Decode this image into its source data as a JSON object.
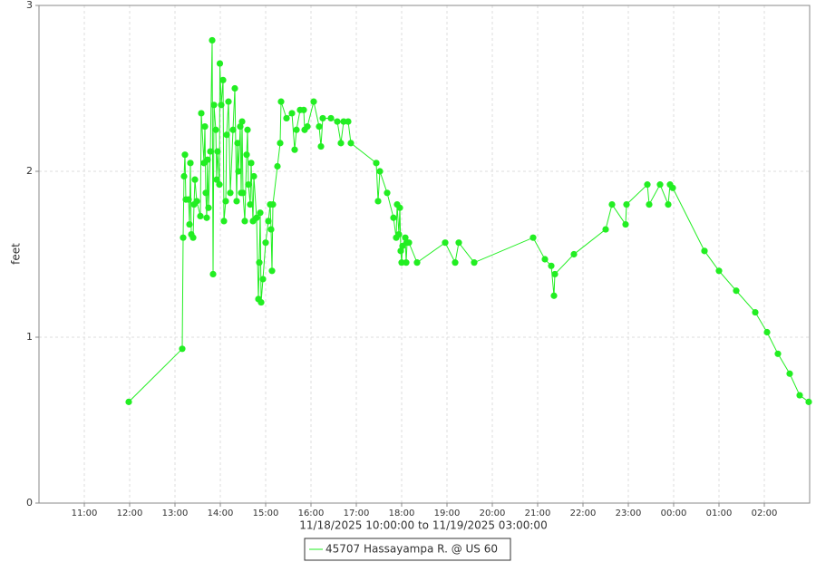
{
  "chart_data": {
    "type": "line",
    "x_label": "11/18/2025 10:00:00 to 11/19/2025 03:00:00",
    "y_label": "feet",
    "x": [
      1.98,
      3.16,
      3.18,
      3.2,
      3.22,
      3.24,
      3.3,
      3.32,
      3.34,
      3.36,
      3.4,
      3.42,
      3.44,
      3.48,
      3.56,
      3.58,
      3.64,
      3.66,
      3.68,
      3.7,
      3.72,
      3.74,
      3.78,
      3.82,
      3.84,
      3.86,
      3.9,
      3.92,
      3.94,
      3.98,
      3.99,
      4.02,
      4.06,
      4.08,
      4.12,
      4.14,
      4.18,
      4.22,
      4.28,
      4.32,
      4.36,
      4.38,
      4.4,
      4.44,
      4.46,
      4.48,
      4.5,
      4.54,
      4.58,
      4.6,
      4.62,
      4.66,
      4.68,
      4.72,
      4.74,
      4.8,
      4.84,
      4.86,
      4.88,
      4.9,
      4.94,
      5.0,
      5.06,
      5.1,
      5.12,
      5.14,
      5.16,
      5.26,
      5.32,
      5.34,
      5.46,
      5.58,
      5.64,
      5.68,
      5.76,
      5.84,
      5.86,
      5.92,
      6.06,
      6.18,
      6.22,
      6.26,
      6.44,
      6.58,
      6.66,
      6.72,
      6.82,
      6.88,
      7.44,
      7.48,
      7.52,
      7.68,
      7.82,
      7.88,
      7.9,
      7.94,
      7.96,
      7.98,
      8.0,
      8.02,
      8.08,
      8.1,
      8.12,
      8.16,
      8.34,
      8.96,
      9.18,
      9.26,
      9.6,
      10.9,
      11.16,
      11.3,
      11.36,
      11.38,
      11.8,
      12.5,
      12.64,
      12.94,
      12.96,
      13.42,
      13.46,
      13.7,
      13.88,
      13.92,
      13.98,
      14.68,
      15.0,
      15.38,
      15.8,
      16.06,
      16.3,
      16.56,
      16.78,
      16.98
    ],
    "series": [
      {
        "name": "45707 Hassayampa R. @ US 60",
        "color": "#22ee22",
        "values": [
          0.61,
          0.93,
          1.6,
          1.97,
          2.1,
          1.83,
          1.83,
          1.68,
          2.05,
          1.62,
          1.6,
          1.8,
          1.95,
          1.82,
          1.73,
          2.35,
          2.05,
          2.27,
          1.87,
          1.72,
          2.07,
          1.78,
          2.12,
          2.79,
          1.38,
          2.4,
          2.25,
          1.95,
          2.12,
          1.92,
          2.65,
          2.4,
          2.55,
          1.7,
          1.82,
          2.22,
          2.42,
          1.87,
          2.25,
          2.5,
          1.82,
          2.17,
          2.0,
          2.27,
          1.87,
          2.3,
          1.87,
          1.7,
          2.1,
          2.25,
          1.92,
          1.8,
          2.05,
          1.7,
          1.97,
          1.72,
          1.23,
          1.45,
          1.75,
          1.21,
          1.35,
          1.57,
          1.7,
          1.8,
          1.65,
          1.4,
          1.8,
          2.03,
          2.17,
          2.42,
          2.32,
          2.35,
          2.13,
          2.25,
          2.37,
          2.37,
          2.25,
          2.27,
          2.42,
          2.27,
          2.15,
          2.32,
          2.32,
          2.3,
          2.17,
          2.3,
          2.3,
          2.17,
          2.05,
          1.82,
          2.0,
          1.87,
          1.72,
          1.6,
          1.8,
          1.62,
          1.78,
          1.52,
          1.45,
          1.55,
          1.6,
          1.45,
          1.57,
          1.57,
          1.45,
          1.57,
          1.45,
          1.57,
          1.45,
          1.6,
          1.47,
          1.43,
          1.25,
          1.38,
          1.5,
          1.65,
          1.8,
          1.68,
          1.8,
          1.92,
          1.8,
          1.92,
          1.8,
          1.92,
          1.9,
          1.52,
          1.4,
          1.28,
          1.15,
          1.03,
          0.9,
          0.78,
          0.65,
          0.61
        ]
      }
    ],
    "xlim": [
      0,
      17
    ],
    "xticks": [
      {
        "value": 1,
        "label": "11:00"
      },
      {
        "value": 2,
        "label": "12:00"
      },
      {
        "value": 3,
        "label": "13:00"
      },
      {
        "value": 4,
        "label": "14:00"
      },
      {
        "value": 5,
        "label": "15:00"
      },
      {
        "value": 6,
        "label": "16:00"
      },
      {
        "value": 7,
        "label": "17:00"
      },
      {
        "value": 8,
        "label": "18:00"
      },
      {
        "value": 9,
        "label": "19:00"
      },
      {
        "value": 10,
        "label": "20:00"
      },
      {
        "value": 11,
        "label": "21:00"
      },
      {
        "value": 12,
        "label": "22:00"
      },
      {
        "value": 13,
        "label": "23:00"
      },
      {
        "value": 14,
        "label": "00:00"
      },
      {
        "value": 15,
        "label": "01:00"
      },
      {
        "value": 16,
        "label": "02:00"
      }
    ],
    "ylim": [
      0,
      3
    ],
    "yticks": [
      0,
      1,
      2,
      3
    ],
    "grid": true,
    "legend": "bottom"
  }
}
